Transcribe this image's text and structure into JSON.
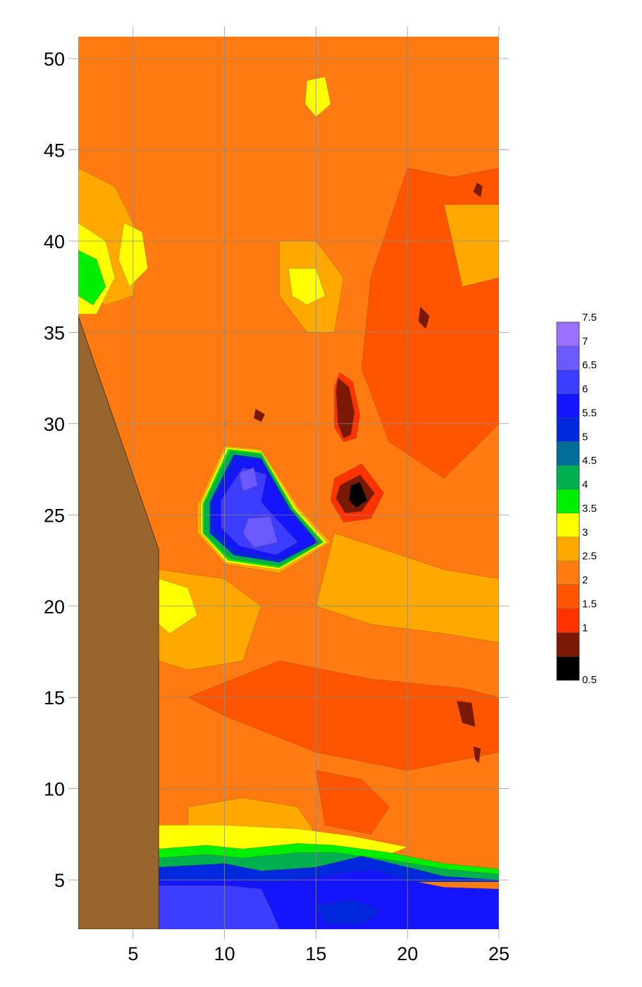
{
  "chart_data": {
    "type": "heatmap",
    "title": "",
    "xlabel": "",
    "ylabel": "",
    "xlim": [
      2,
      25
    ],
    "ylim": [
      2.3,
      51.2
    ],
    "grid": true,
    "x_ticks": [
      5,
      10,
      15,
      20,
      25
    ],
    "y_ticks": [
      5,
      10,
      15,
      20,
      25,
      30,
      35,
      40,
      45,
      50
    ],
    "x_tick_labels": [
      "5",
      "10",
      "15",
      "20",
      "25"
    ],
    "y_tick_labels": [
      "5",
      "10",
      "15",
      "20",
      "25",
      "30",
      "35",
      "40",
      "45",
      "50"
    ],
    "legend": {
      "placement": "right",
      "levels": [
        "0.5",
        "1",
        "1.5",
        "2",
        "2.5",
        "3",
        "3.5",
        "4",
        "4.5",
        "5",
        "5.5",
        "6",
        "6.5",
        "7",
        "7.5"
      ],
      "colors": [
        "#000000",
        "#7a1a06",
        "#ff3300",
        "#ff5500",
        "#ff7a10",
        "#ffa800",
        "#ffff00",
        "#00ee00",
        "#00b050",
        "#006e99",
        "#0028dd",
        "#1414ff",
        "#3d3dff",
        "#6a5aff",
        "#9a70ff"
      ]
    },
    "masked_region_color": "#99652f",
    "masked_region": [
      [
        2,
        2.3
      ],
      [
        6.4,
        2.3
      ],
      [
        6.4,
        23.1
      ],
      [
        2,
        35.9
      ]
    ],
    "base_color": "#ff7a10",
    "features": [
      {
        "level": 2,
        "points": [
          [
            20,
            44
          ],
          [
            22.5,
            43.5
          ],
          [
            25,
            44
          ],
          [
            25,
            30
          ],
          [
            22,
            27
          ],
          [
            19,
            29
          ],
          [
            17.5,
            33
          ],
          [
            18,
            38
          ]
        ]
      },
      {
        "level": 2,
        "points": [
          [
            13,
            17
          ],
          [
            18,
            16
          ],
          [
            23,
            15.5
          ],
          [
            25,
            15
          ],
          [
            25,
            12
          ],
          [
            20,
            11
          ],
          [
            15,
            12
          ],
          [
            10,
            14
          ],
          [
            8,
            15
          ]
        ]
      },
      {
        "level": 2,
        "points": [
          [
            15,
            11
          ],
          [
            17.5,
            10.5
          ],
          [
            19,
            9
          ],
          [
            18,
            7.5
          ],
          [
            15.5,
            8
          ]
        ]
      },
      {
        "level": 3,
        "points": [
          [
            16,
            24
          ],
          [
            19,
            23
          ],
          [
            22,
            22
          ],
          [
            25,
            21.5
          ],
          [
            25,
            18
          ],
          [
            22,
            18.5
          ],
          [
            18,
            19
          ],
          [
            15,
            20
          ]
        ]
      },
      {
        "level": 3,
        "points": [
          [
            6.4,
            22
          ],
          [
            10,
            21.5
          ],
          [
            12,
            20
          ],
          [
            11,
            17
          ],
          [
            8,
            16.5
          ],
          [
            6.4,
            17
          ]
        ]
      },
      {
        "level": 3,
        "points": [
          [
            8,
            9
          ],
          [
            11,
            9.5
          ],
          [
            14,
            9
          ],
          [
            15,
            7.5
          ],
          [
            11,
            7.5
          ],
          [
            8,
            7.5
          ]
        ]
      },
      {
        "level": 3,
        "points": [
          [
            2,
            44
          ],
          [
            4,
            43
          ],
          [
            5.5,
            40
          ],
          [
            5,
            37
          ],
          [
            3.5,
            36.5
          ],
          [
            2,
            37.5
          ]
        ]
      },
      {
        "level": 3,
        "points": [
          [
            13,
            40
          ],
          [
            15,
            40
          ],
          [
            16.5,
            38
          ],
          [
            16,
            35
          ],
          [
            14.5,
            35
          ],
          [
            13,
            37
          ]
        ]
      },
      {
        "level": 3,
        "points": [
          [
            22,
            42
          ],
          [
            25,
            42
          ],
          [
            25,
            38
          ],
          [
            23,
            37.5
          ]
        ]
      },
      {
        "level": 3.5,
        "points": [
          [
            2,
            41
          ],
          [
            3.5,
            40
          ],
          [
            4,
            38
          ],
          [
            3,
            36
          ],
          [
            2,
            36
          ]
        ]
      },
      {
        "level": 3.5,
        "points": [
          [
            4.5,
            41
          ],
          [
            5.5,
            40.5
          ],
          [
            5.8,
            38.5
          ],
          [
            4.8,
            37.5
          ],
          [
            4.2,
            39
          ]
        ]
      },
      {
        "level": 3.5,
        "points": [
          [
            13.5,
            38.5
          ],
          [
            15,
            38.5
          ],
          [
            15.5,
            37
          ],
          [
            14.5,
            36.5
          ],
          [
            13.7,
            37
          ]
        ]
      },
      {
        "level": 3.5,
        "points": [
          [
            6.4,
            21.5
          ],
          [
            8,
            21
          ],
          [
            8.5,
            19.5
          ],
          [
            7,
            18.5
          ],
          [
            6.4,
            19
          ]
        ]
      },
      {
        "level": 3.5,
        "points": [
          [
            14.5,
            48.8
          ],
          [
            15.5,
            49
          ],
          [
            15.8,
            47.5
          ],
          [
            15,
            46.8
          ],
          [
            14.4,
            47.5
          ]
        ]
      },
      {
        "level": 3.5,
        "points": [
          [
            6.4,
            8
          ],
          [
            10,
            8
          ],
          [
            14,
            7.8
          ],
          [
            17,
            7.4
          ],
          [
            20,
            6.8
          ],
          [
            19,
            6.4
          ],
          [
            15,
            6.5
          ],
          [
            11,
            6.6
          ],
          [
            6.4,
            6.6
          ]
        ]
      },
      {
        "level": 4,
        "points": [
          [
            2,
            39.5
          ],
          [
            3,
            39
          ],
          [
            3.5,
            37.5
          ],
          [
            2.8,
            36.5
          ],
          [
            2,
            37
          ]
        ]
      },
      {
        "level": 4,
        "points": [
          [
            6.4,
            6.7
          ],
          [
            9,
            6.9
          ],
          [
            11,
            6.7
          ],
          [
            14,
            7
          ],
          [
            16,
            6.9
          ],
          [
            19,
            6.5
          ],
          [
            22,
            5.9
          ],
          [
            25,
            5.6
          ],
          [
            25,
            4.9
          ],
          [
            6.4,
            4.9
          ]
        ]
      },
      {
        "level": 4.5,
        "points": [
          [
            6.4,
            6.2
          ],
          [
            9,
            6.4
          ],
          [
            11,
            6.2
          ],
          [
            14,
            6.5
          ],
          [
            16,
            6.5
          ],
          [
            19,
            6.1
          ],
          [
            22,
            5.6
          ],
          [
            25,
            5.3
          ],
          [
            25,
            4.9
          ],
          [
            6.4,
            4.9
          ]
        ]
      },
      {
        "level": 5.5,
        "points": [
          [
            6.4,
            5.7
          ],
          [
            10,
            5.9
          ],
          [
            12,
            5.5
          ],
          [
            15,
            5.7
          ],
          [
            17.5,
            6.3
          ],
          [
            20,
            5.7
          ],
          [
            22,
            5.2
          ],
          [
            25,
            5.0
          ],
          [
            25,
            4.9
          ],
          [
            6.4,
            4.9
          ]
        ]
      },
      {
        "level": 6,
        "points": [
          [
            6.4,
            5.0
          ],
          [
            10,
            5.0
          ],
          [
            13,
            4.9
          ],
          [
            16,
            5.3
          ],
          [
            18,
            5.6
          ],
          [
            20,
            5.0
          ],
          [
            22,
            4.6
          ],
          [
            25,
            4.5
          ],
          [
            25,
            2.3
          ],
          [
            6.4,
            2.3
          ]
        ]
      },
      {
        "level": 6.5,
        "points": [
          [
            6.4,
            4.7
          ],
          [
            10,
            4.7
          ],
          [
            12,
            4.5
          ],
          [
            12.5,
            3.5
          ],
          [
            13,
            2.3
          ],
          [
            6.4,
            2.3
          ]
        ]
      },
      {
        "level": 5.5,
        "points": [
          [
            15,
            3.6
          ],
          [
            17,
            3.9
          ],
          [
            18.5,
            3.3
          ],
          [
            17.5,
            2.6
          ],
          [
            15.5,
            2.6
          ]
        ]
      },
      {
        "level": 3,
        "points": [
          [
            8.5,
            25.5
          ],
          [
            10,
            28.8
          ],
          [
            12,
            28.6
          ],
          [
            14,
            25.5
          ],
          [
            15.8,
            23.5
          ],
          [
            13,
            21.8
          ],
          [
            10,
            22.3
          ],
          [
            8.5,
            24
          ]
        ]
      },
      {
        "level": 3.5,
        "points": [
          [
            8.7,
            25.6
          ],
          [
            10.1,
            28.7
          ],
          [
            12,
            28.5
          ],
          [
            13.9,
            25.4
          ],
          [
            15.6,
            23.5
          ],
          [
            13,
            22
          ],
          [
            10.1,
            22.4
          ],
          [
            8.7,
            24
          ]
        ]
      },
      {
        "level": 4,
        "points": [
          [
            8.8,
            25.6
          ],
          [
            10.2,
            28.6
          ],
          [
            12,
            28.4
          ],
          [
            13.8,
            25.3
          ],
          [
            15.4,
            23.5
          ],
          [
            13,
            22.1
          ],
          [
            10.2,
            22.5
          ],
          [
            8.8,
            24
          ]
        ]
      },
      {
        "level": 4.5,
        "points": [
          [
            8.9,
            25.6
          ],
          [
            10.3,
            28.5
          ],
          [
            12,
            28.3
          ],
          [
            13.7,
            25.3
          ],
          [
            15.3,
            23.5
          ],
          [
            13,
            22.2
          ],
          [
            10.3,
            22.6
          ],
          [
            8.9,
            24
          ]
        ]
      },
      {
        "level": 5.5,
        "points": [
          [
            9.2,
            25.7
          ],
          [
            10.5,
            28.3
          ],
          [
            12,
            28.1
          ],
          [
            13.6,
            25.3
          ],
          [
            15.1,
            23.5
          ],
          [
            13,
            22.4
          ],
          [
            10.5,
            22.8
          ],
          [
            9.2,
            24
          ]
        ]
      },
      {
        "level": 6,
        "points": [
          [
            9.4,
            25.8
          ],
          [
            10.7,
            28.1
          ],
          [
            12,
            28
          ],
          [
            13.5,
            25.2
          ],
          [
            15,
            23.5
          ],
          [
            13,
            22.6
          ],
          [
            10.6,
            23
          ],
          [
            9.4,
            24.2
          ]
        ]
      },
      {
        "level": 6.5,
        "points": [
          [
            9.8,
            25.8
          ],
          [
            11,
            27.6
          ],
          [
            12.3,
            27.2
          ],
          [
            12,
            25.7
          ],
          [
            14,
            23.5
          ],
          [
            12.8,
            22.8
          ],
          [
            10.8,
            23.3
          ],
          [
            9.8,
            24.3
          ]
        ]
      },
      {
        "level": 7,
        "points": [
          [
            10.8,
            27.3
          ],
          [
            11.6,
            27.6
          ],
          [
            11.8,
            26.6
          ],
          [
            11,
            26.3
          ]
        ]
      },
      {
        "level": 7,
        "points": [
          [
            11.3,
            24.8
          ],
          [
            12.5,
            24.9
          ],
          [
            12.9,
            23.5
          ],
          [
            11.6,
            23.2
          ],
          [
            11,
            24
          ]
        ]
      },
      {
        "level": 1.5,
        "points": [
          [
            16.3,
            32.8
          ],
          [
            17,
            32.3
          ],
          [
            17.4,
            30.5
          ],
          [
            17.2,
            29.2
          ],
          [
            16.5,
            29
          ],
          [
            16,
            29.8
          ],
          [
            16,
            32
          ]
        ]
      },
      {
        "level": 1.5,
        "points": [
          [
            16,
            27
          ],
          [
            17.5,
            27.8
          ],
          [
            18.7,
            26.2
          ],
          [
            18,
            24.8
          ],
          [
            16.5,
            24.6
          ],
          [
            15.8,
            25.8
          ]
        ]
      },
      {
        "level": 1,
        "points": [
          [
            16.2,
            32.5
          ],
          [
            16.8,
            32
          ],
          [
            17.1,
            30.6
          ],
          [
            16.9,
            29.4
          ],
          [
            16.5,
            29.2
          ],
          [
            16.2,
            30
          ],
          [
            16.1,
            31.8
          ]
        ]
      },
      {
        "level": 1,
        "points": [
          [
            16.3,
            26.6
          ],
          [
            17.4,
            27.2
          ],
          [
            18.2,
            26.2
          ],
          [
            17.5,
            25.2
          ],
          [
            16.6,
            25.1
          ],
          [
            16.1,
            25.9
          ]
        ]
      },
      {
        "level": 0.5,
        "points": [
          [
            16.9,
            26.6
          ],
          [
            17.4,
            26.8
          ],
          [
            17.8,
            25.8
          ],
          [
            17.2,
            25.4
          ],
          [
            16.8,
            25.8
          ]
        ]
      },
      {
        "level": 1,
        "points": [
          [
            22.7,
            14.8
          ],
          [
            23.5,
            14.7
          ],
          [
            23.7,
            13.4
          ],
          [
            23,
            13.6
          ]
        ]
      },
      {
        "level": 1,
        "points": [
          [
            23.6,
            12.3
          ],
          [
            24,
            12.2
          ],
          [
            23.9,
            11.4
          ],
          [
            23.7,
            11.6
          ]
        ]
      },
      {
        "level": 1,
        "points": [
          [
            20.7,
            36.4
          ],
          [
            21.2,
            35.9
          ],
          [
            21,
            35.2
          ],
          [
            20.6,
            35.6
          ]
        ]
      },
      {
        "level": 1,
        "points": [
          [
            23.8,
            43.2
          ],
          [
            24.1,
            43
          ],
          [
            24,
            42.4
          ],
          [
            23.6,
            42.7
          ]
        ]
      },
      {
        "level": 1,
        "points": [
          [
            11.7,
            30.8
          ],
          [
            12.2,
            30.5
          ],
          [
            12,
            30.1
          ],
          [
            11.6,
            30.3
          ]
        ]
      }
    ]
  }
}
